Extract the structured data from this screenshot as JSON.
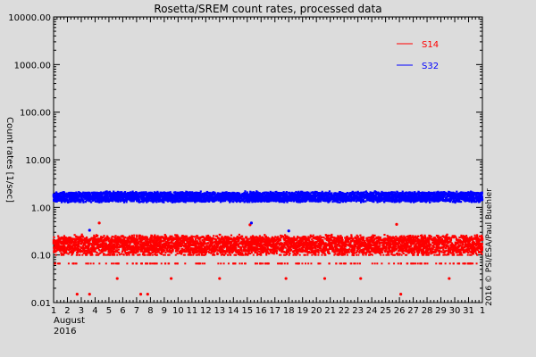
{
  "chart_data": {
    "type": "scatter",
    "title": "Rosetta/SREM count rates, processed data",
    "xlabel_line1": "August",
    "xlabel_line2": "2016",
    "ylabel": "Count rates [1/sec]",
    "credit": "2016 © PSI/ESA/Paul Buehler",
    "y_scale": "log",
    "ylim": [
      0.01,
      10000
    ],
    "y_ticks": [
      "0.01",
      "0.10",
      "1.00",
      "10.00",
      "100.00",
      "1000.00",
      "10000.00"
    ],
    "xlim": [
      1,
      32
    ],
    "x_ticks": [
      "1",
      "2",
      "3",
      "4",
      "5",
      "6",
      "7",
      "8",
      "9",
      "10",
      "11",
      "12",
      "13",
      "14",
      "15",
      "16",
      "17",
      "18",
      "19",
      "20",
      "21",
      "22",
      "23",
      "24",
      "25",
      "26",
      "27",
      "28",
      "29",
      "30",
      "31",
      "1"
    ],
    "legend_placement": "top-right",
    "series": [
      {
        "name": "S14",
        "color": "#ff0000",
        "band": [
          0.09,
          0.3
        ],
        "quantized_levels": [
          0.066,
          0.1
        ],
        "outliers": [
          {
            "x": 2.7,
            "y": 0.015
          },
          {
            "x": 3.6,
            "y": 0.015
          },
          {
            "x": 7.8,
            "y": 0.015
          },
          {
            "x": 7.3,
            "y": 0.015
          },
          {
            "x": 26.1,
            "y": 0.015
          },
          {
            "x": 5.6,
            "y": 0.032
          },
          {
            "x": 9.5,
            "y": 0.032
          },
          {
            "x": 13.0,
            "y": 0.032
          },
          {
            "x": 17.8,
            "y": 0.032
          },
          {
            "x": 20.6,
            "y": 0.032
          },
          {
            "x": 23.2,
            "y": 0.032
          },
          {
            "x": 29.6,
            "y": 0.032
          },
          {
            "x": 4.3,
            "y": 0.47
          },
          {
            "x": 25.8,
            "y": 0.44
          },
          {
            "x": 15.2,
            "y": 0.43
          }
        ]
      },
      {
        "name": "S32",
        "color": "#0000ff",
        "band": [
          1.2,
          2.3
        ],
        "outliers": [
          {
            "x": 15.3,
            "y": 0.47
          },
          {
            "x": 18.0,
            "y": 0.32
          },
          {
            "x": 3.6,
            "y": 0.33
          }
        ]
      }
    ]
  }
}
